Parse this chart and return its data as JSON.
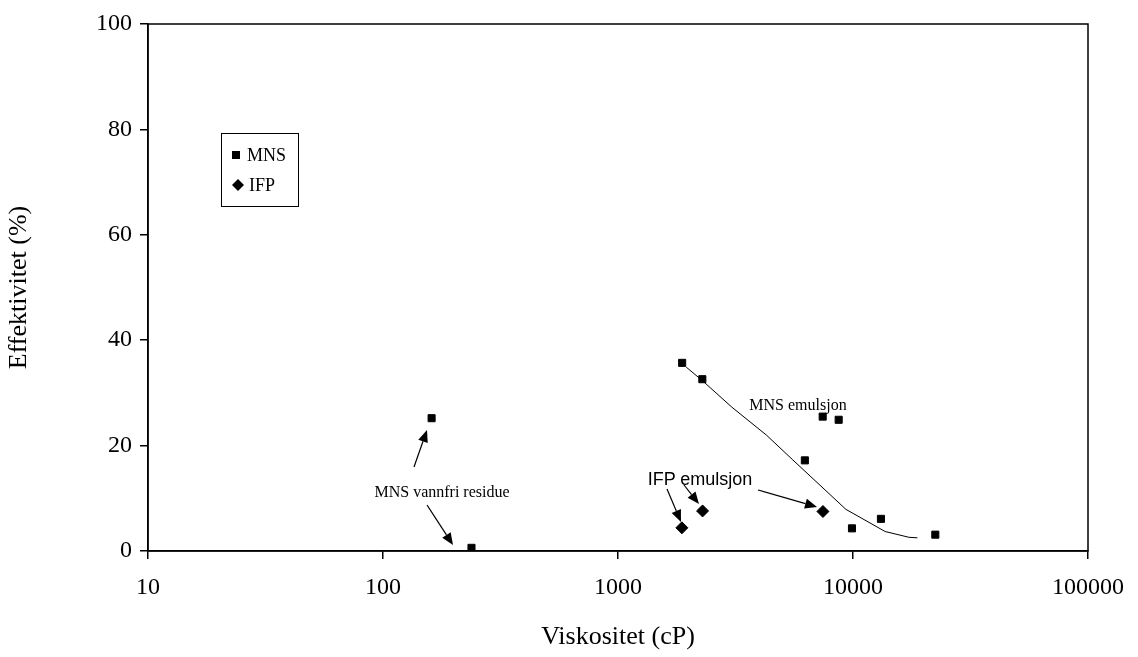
{
  "chart_data": {
    "type": "scatter",
    "xlabel": "Viskositet (cP)",
    "ylabel": "Effektivitet (%)",
    "log": "x",
    "grid": false,
    "legend": "top left",
    "xlim": [
      10,
      100000
    ],
    "xticks": [
      10,
      100,
      1000,
      10000,
      100000
    ],
    "ylim": [
      0,
      100
    ],
    "yticks": [
      0,
      20,
      40,
      60,
      80,
      100
    ],
    "annotations": [
      "MNS vannfri residue",
      "IFP emulsjon",
      "MNS emulsjon"
    ],
    "series": [
      {
        "name": "MNS",
        "marker": "square",
        "color": "#000000",
        "x": [
          161,
          238,
          1875,
          2285,
          7430,
          8690,
          6240,
          9900,
          13150,
          22400
        ],
        "values": [
          25.2,
          0.6,
          35.7,
          32.6,
          25.5,
          24.9,
          17.2,
          4.3,
          6.1,
          3.1
        ]
      },
      {
        "name": "IFP",
        "marker": "diamond",
        "color": "#000000",
        "x": [
          1870,
          2290,
          7450
        ],
        "values": [
          4.4,
          7.6,
          7.5
        ]
      },
      {
        "type": "line",
        "marker": "none",
        "line_style": "solid",
        "color": "#000000",
        "x": [
          1950,
          2290,
          3050,
          4280,
          5510,
          9330,
          13700,
          17300,
          18800
        ],
        "values": [
          34.9,
          32.3,
          27.3,
          22,
          17.4,
          7.9,
          3.7,
          2.6,
          2.5
        ]
      }
    ]
  }
}
